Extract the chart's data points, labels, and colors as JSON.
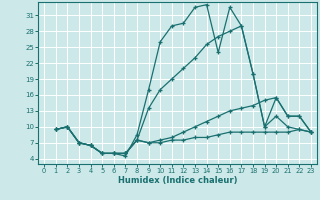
{
  "xlabel": "Humidex (Indice chaleur)",
  "bg_color": "#cce8e8",
  "grid_color": "#ffffff",
  "line_color": "#1a7070",
  "xlim": [
    -0.5,
    23.5
  ],
  "ylim": [
    3,
    33.5
  ],
  "yticks": [
    4,
    7,
    10,
    13,
    16,
    19,
    22,
    25,
    28,
    31
  ],
  "xticks": [
    0,
    1,
    2,
    3,
    4,
    5,
    6,
    7,
    8,
    9,
    10,
    11,
    12,
    13,
    14,
    15,
    16,
    17,
    18,
    19,
    20,
    21,
    22,
    23
  ],
  "lines": [
    {
      "x": [
        1,
        2,
        3,
        4,
        5,
        6,
        7,
        8,
        9,
        10,
        11,
        12,
        13,
        14,
        15,
        16,
        17,
        18,
        19,
        20,
        21,
        22,
        23
      ],
      "y": [
        9.5,
        10,
        7,
        6.5,
        5,
        5,
        4.5,
        8.5,
        17,
        26,
        29,
        29.5,
        32.5,
        33,
        24,
        32.5,
        29,
        20,
        10,
        12,
        10,
        9.5,
        9
      ]
    },
    {
      "x": [
        1,
        2,
        3,
        4,
        5,
        6,
        7,
        8,
        9,
        10,
        11,
        12,
        13,
        14,
        15,
        16,
        17,
        18,
        19,
        20,
        21,
        22,
        23
      ],
      "y": [
        9.5,
        10,
        7,
        6.5,
        5,
        5,
        5,
        7.5,
        13.5,
        17,
        19,
        21,
        23,
        25.5,
        27,
        28,
        29,
        20,
        10,
        15.5,
        12,
        12,
        9
      ]
    },
    {
      "x": [
        1,
        2,
        3,
        4,
        5,
        6,
        7,
        8,
        9,
        10,
        11,
        12,
        13,
        14,
        15,
        16,
        17,
        18,
        19,
        20,
        21,
        22,
        23
      ],
      "y": [
        9.5,
        10,
        7,
        6.5,
        5,
        5,
        5,
        7.5,
        7,
        7.5,
        8,
        9,
        10,
        11,
        12,
        13,
        13.5,
        14,
        15,
        15.5,
        12,
        12,
        9
      ]
    },
    {
      "x": [
        1,
        2,
        3,
        4,
        5,
        6,
        7,
        8,
        9,
        10,
        11,
        12,
        13,
        14,
        15,
        16,
        17,
        18,
        19,
        20,
        21,
        22,
        23
      ],
      "y": [
        9.5,
        10,
        7,
        6.5,
        5,
        5,
        5,
        7.5,
        7,
        7,
        7.5,
        7.5,
        8,
        8,
        8.5,
        9,
        9,
        9,
        9,
        9,
        9,
        9.5,
        9
      ]
    }
  ]
}
